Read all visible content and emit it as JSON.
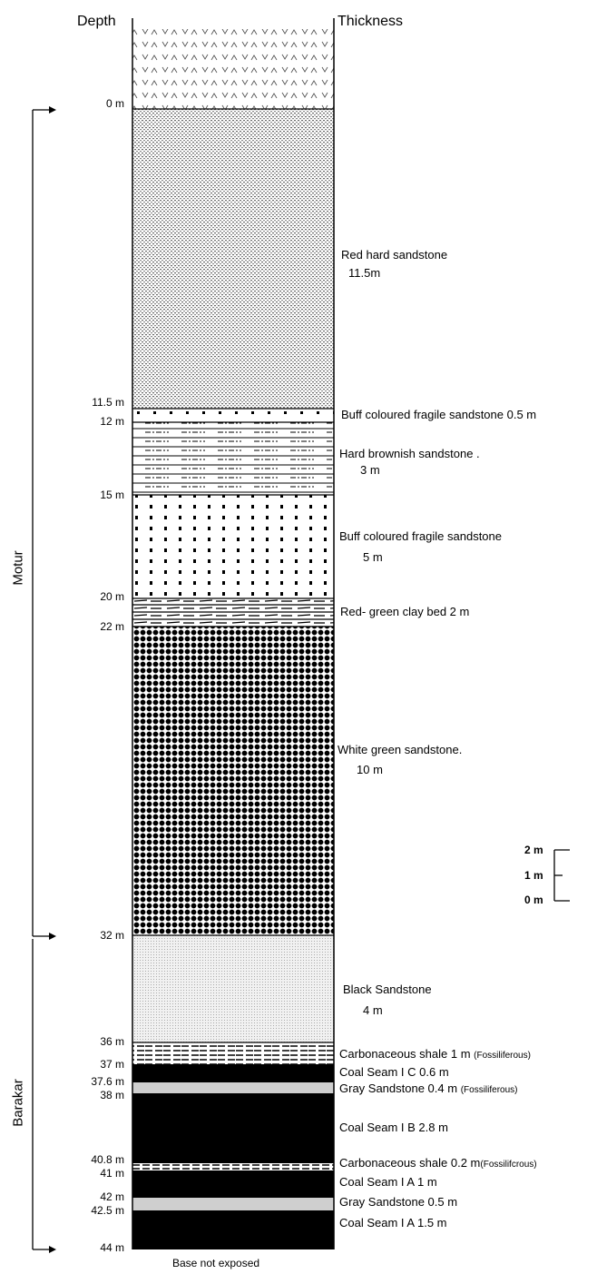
{
  "headers": {
    "depth": "Depth",
    "thickness": "Thickness"
  },
  "formations": {
    "motur": "Motur",
    "barakar": "Barakar"
  },
  "depth_labels": [
    "0 m",
    "11.5 m",
    "12 m",
    "15 m",
    "20 m",
    "22 m",
    "32 m",
    "36 m",
    "37 m",
    "37.6 m",
    "38 m",
    "40.8 m",
    "41 m",
    "42 m",
    "42.5 m",
    "44 m"
  ],
  "layers": [
    {
      "name": "Red hard sandstone",
      "thickness": "11.5m"
    },
    {
      "name": "Buff coloured fragile sandstone 0.5 m"
    },
    {
      "name": "Hard brownish sandstone .",
      "thickness": "3 m"
    },
    {
      "name": "Buff coloured fragile sandstone",
      "thickness": "5 m"
    },
    {
      "name": "Red- green clay bed 2 m"
    },
    {
      "name": "White green sandstone.",
      "thickness": "10 m"
    },
    {
      "name": "Black Sandstone",
      "thickness": "4 m"
    },
    {
      "name": "Carbonaceous shale 1 m",
      "note": "(Fossiliferous)"
    },
    {
      "name": "Coal Seam I C  0.6 m"
    },
    {
      "name": "Gray Sandstone 0.4 m",
      "note": "(Fossiliferous)"
    },
    {
      "name": "Coal Seam I B  2.8 m"
    },
    {
      "name": "Carbonaceous shale 0.2 m",
      "note": "(Fossilifcrous)"
    },
    {
      "name": "Coal Seam I A  1 m"
    },
    {
      "name": "Gray Sandstone 0.5 m"
    },
    {
      "name": "Coal Seam I A 1.5 m"
    }
  ],
  "scale": {
    "top": "2 m",
    "mid": "1 m",
    "bottom": "0 m"
  },
  "footer": "Base not exposed"
}
